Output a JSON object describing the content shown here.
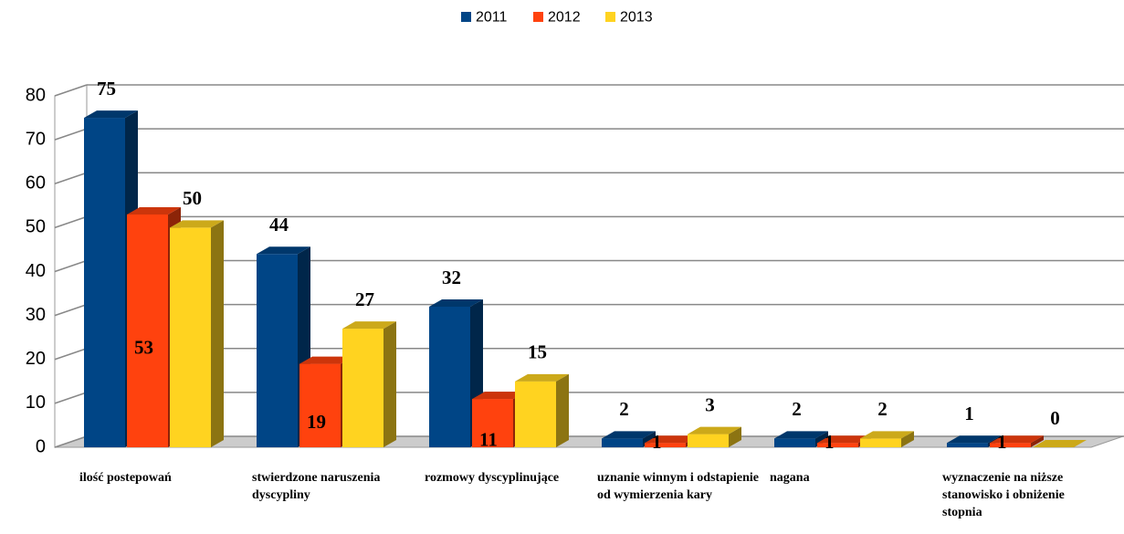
{
  "chart_data": {
    "type": "bar3d",
    "categories": [
      "ilość postepowań",
      "stwierdzone naruszenia dyscypliny",
      "rozmowy dyscyplinujące",
      "uznanie winnym i odstapienie od wymierzenia kary",
      "nagana",
      "wyznaczenie na niższe stanowisko i obniżenie stopnia"
    ],
    "series": [
      {
        "name": "2011",
        "color": "#004586",
        "values": [
          75,
          44,
          32,
          2,
          2,
          1
        ]
      },
      {
        "name": "2012",
        "color": "#ff420e",
        "values": [
          53,
          19,
          11,
          1,
          1,
          1
        ]
      },
      {
        "name": "2013",
        "color": "#ffd320",
        "values": [
          50,
          27,
          15,
          3,
          2,
          0
        ]
      }
    ],
    "ylim": [
      0,
      80
    ],
    "yticks": [
      0,
      10,
      20,
      30,
      40,
      50,
      60,
      70,
      80
    ],
    "grid": true,
    "legend": "top"
  }
}
